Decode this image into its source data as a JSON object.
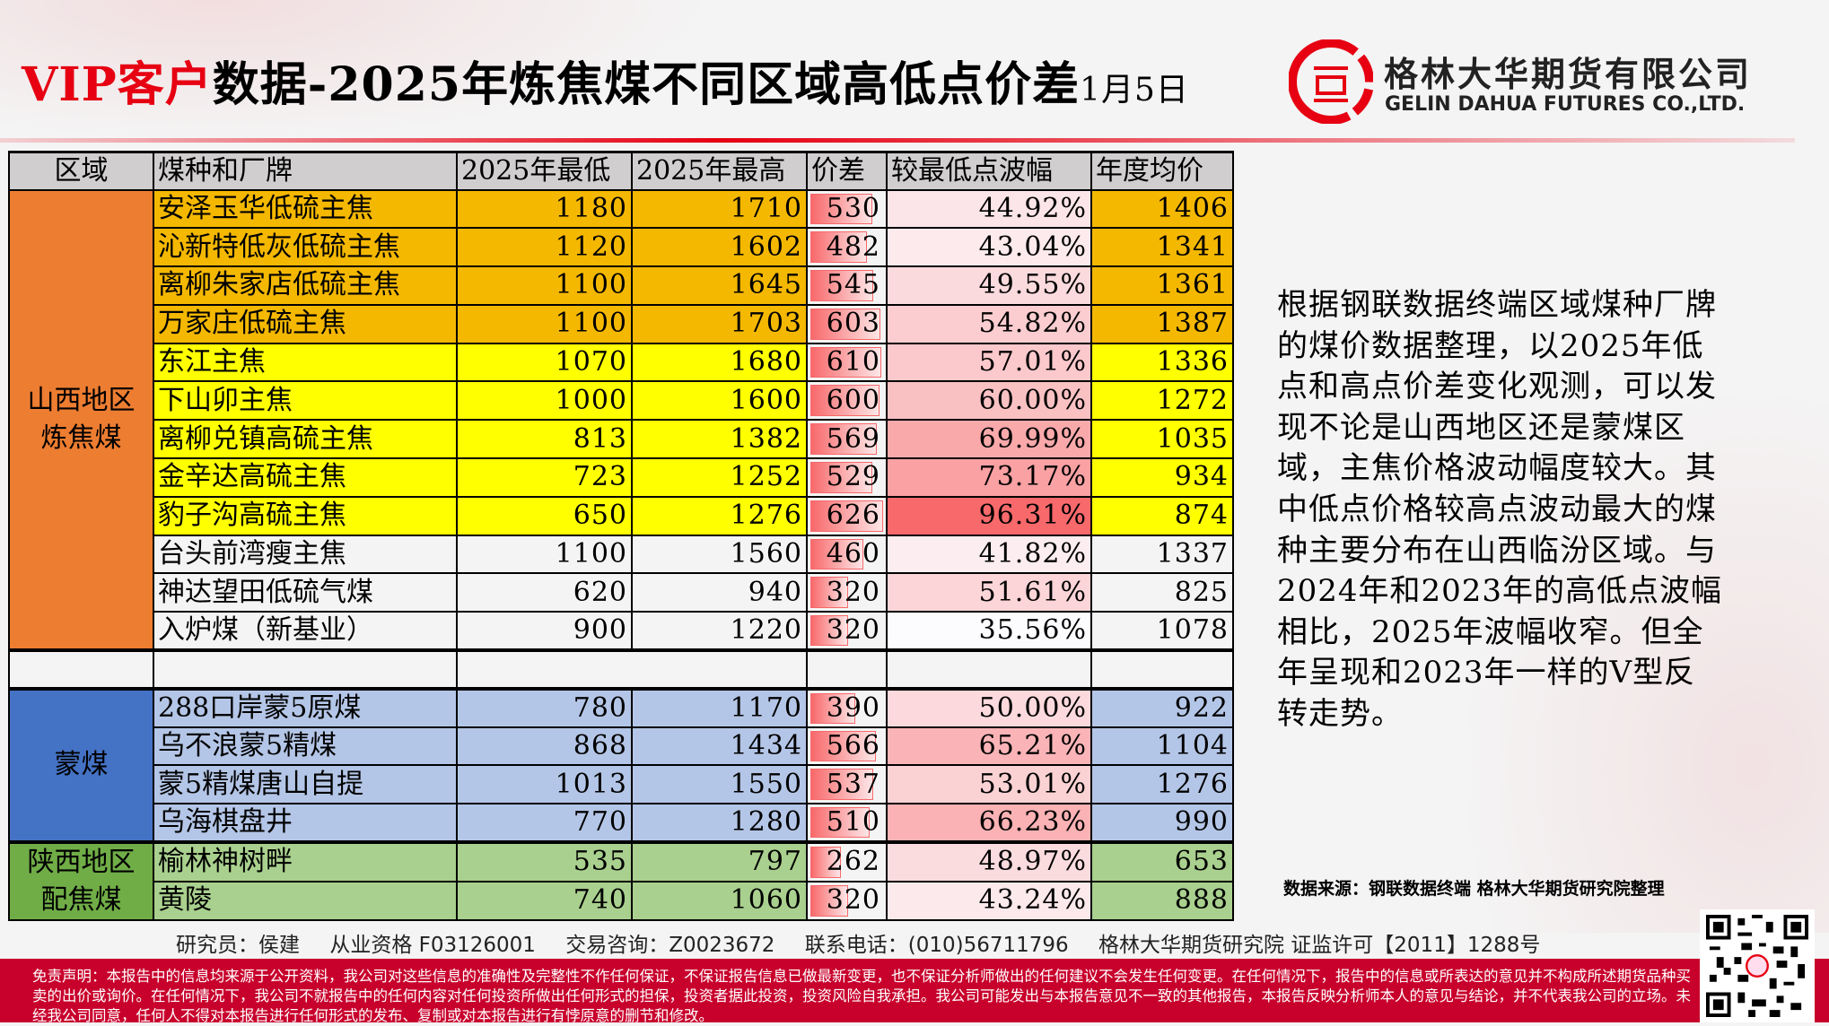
{
  "header": {
    "title_vip": "VIP客户",
    "title_main": "数据-2025年炼焦煤不同区域高低点价差",
    "title_date": "1月5日",
    "company_cn": "格林大华期货有限公司",
    "company_en": "GELIN DAHUA FUTURES CO.,LTD."
  },
  "colors": {
    "accent": "#e60012",
    "header_bg": "#d0cece",
    "shanxi_region": "#ed7d31",
    "gold_row": "#f5b800",
    "yellow_row": "#ffff00",
    "mongolia_region": "#4472c4",
    "mongolia_row": "#b4c6e7",
    "shaanxi_region": "#70ad47",
    "shaanxi_row": "#a9d08e",
    "scale_low": "#fcfcff",
    "scale_high": "#f8696b"
  },
  "table": {
    "columns": [
      "区域",
      "煤种和厂牌",
      "2025年最低",
      "2025年最高",
      "价差",
      "较最低点波幅",
      "年度均价"
    ],
    "groups": [
      {
        "region": "山西地区炼焦煤",
        "rows": [
          {
            "name": "安泽玉华低硫主焦",
            "low": "1180",
            "high": "1710",
            "diff": "530",
            "wave": "44.92%",
            "avg": "1406",
            "fill": "gold"
          },
          {
            "name": "沁新特低灰低硫主焦",
            "low": "1120",
            "high": "1602",
            "diff": "482",
            "wave": "43.04%",
            "avg": "1341",
            "fill": "gold"
          },
          {
            "name": "离柳朱家店低硫主焦",
            "low": "1100",
            "high": "1645",
            "diff": "545",
            "wave": "49.55%",
            "avg": "1361",
            "fill": "gold"
          },
          {
            "name": "万家庄低硫主焦",
            "low": "1100",
            "high": "1703",
            "diff": "603",
            "wave": "54.82%",
            "avg": "1387",
            "fill": "gold"
          },
          {
            "name": "东江主焦",
            "low": "1070",
            "high": "1680",
            "diff": "610",
            "wave": "57.01%",
            "avg": "1336",
            "fill": "yellow"
          },
          {
            "name": "下山卯主焦",
            "low": "1000",
            "high": "1600",
            "diff": "600",
            "wave": "60.00%",
            "avg": "1272",
            "fill": "yellow"
          },
          {
            "name": "离柳兑镇高硫主焦",
            "low": "813",
            "high": "1382",
            "diff": "569",
            "wave": "69.99%",
            "avg": "1035",
            "fill": "yellow"
          },
          {
            "name": "金辛达高硫主焦",
            "low": "723",
            "high": "1252",
            "diff": "529",
            "wave": "73.17%",
            "avg": "934",
            "fill": "yellow"
          },
          {
            "name": "豹子沟高硫主焦",
            "low": "650",
            "high": "1276",
            "diff": "626",
            "wave": "96.31%",
            "avg": "874",
            "fill": "yellow"
          },
          {
            "name": "台头前湾瘦主焦",
            "low": "1100",
            "high": "1560",
            "diff": "460",
            "wave": "41.82%",
            "avg": "1337",
            "fill": "none"
          },
          {
            "name": "神达望田低硫气煤",
            "low": "620",
            "high": "940",
            "diff": "320",
            "wave": "51.61%",
            "avg": "825",
            "fill": "none"
          },
          {
            "name": "入炉煤（新基业）",
            "low": "900",
            "high": "1220",
            "diff": "320",
            "wave": "35.56%",
            "avg": "1078",
            "fill": "none"
          }
        ]
      },
      {
        "region": "蒙煤",
        "rows": [
          {
            "name": "288口岸蒙5原煤",
            "low": "780",
            "high": "1170",
            "diff": "390",
            "wave": "50.00%",
            "avg": "922",
            "fill": "blue"
          },
          {
            "name": "乌不浪蒙5精煤",
            "low": "868",
            "high": "1434",
            "diff": "566",
            "wave": "65.21%",
            "avg": "1104",
            "fill": "blue"
          },
          {
            "name": "蒙5精煤唐山自提",
            "low": "1013",
            "high": "1550",
            "diff": "537",
            "wave": "53.01%",
            "avg": "1276",
            "fill": "blue"
          },
          {
            "name": "乌海棋盘井",
            "low": "770",
            "high": "1280",
            "diff": "510",
            "wave": "66.23%",
            "avg": "990",
            "fill": "blue"
          }
        ]
      },
      {
        "region": "陕西地区配焦煤",
        "rows": [
          {
            "name": "榆林神树畔",
            "low": "535",
            "high": "797",
            "diff": "262",
            "wave": "48.97%",
            "avg": "653",
            "fill": "green"
          },
          {
            "name": "黄陵",
            "low": "740",
            "high": "1060",
            "diff": "320",
            "wave": "43.24%",
            "avg": "888",
            "fill": "green"
          }
        ]
      }
    ]
  },
  "note": "根据钢联数据终端区域煤种厂牌的煤价数据整理，以2025年低点和高点价差变化观测，可以发现不论是山西地区还是蒙煤区域，主焦价格波动幅度较大。其中低点价格较高点波动最大的煤种主要分布在山西临汾区域。与2024年和2023年的高低点波幅相比，2025年波幅收窄。但全年呈现和2023年一样的V型反转走势。",
  "source": "数据来源：钢联数据终端    格林大华期货研究院整理",
  "footer": {
    "researcher": "研究员：侯建",
    "qualification": "从业资格 F03126001",
    "consult": "交易咨询：Z0023672",
    "phone": "联系电话：(010)56711796",
    "license": "格林大华期货研究院  证监许可【2011】1288号",
    "disclaimer": "免责声明：本报告中的信息均来源于公开资料，我公司对这些信息的准确性及完整性不作任何保证，不保证报告信息已做最新变更，也不保证分析师做出的任何建议不会发生任何变更。在任何情况下，报告中的信息或所表达的意见并不构成所述期货品种买卖的出价或询价。在任何情况下，我公司不就报告中的任何内容对任何投资所做出任何形式的担保，投资者据此投资，投资风险自我承担。我公司可能发出与本报告意见不一致的其他报告，本报告反映分析师本人的意见与结论，并不代表我公司的立场。未经我公司同意，任何人不得对本报告进行任何形式的发布、复制或对本报告进行有悖原意的删节和修改。"
  }
}
